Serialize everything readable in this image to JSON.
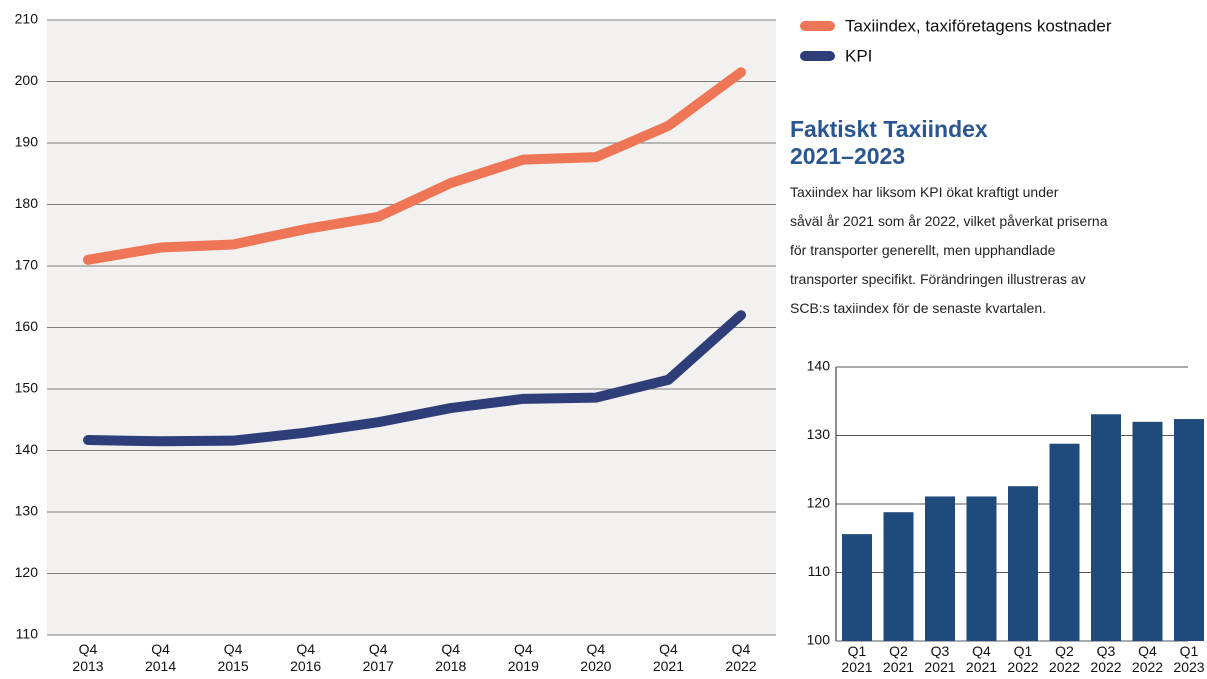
{
  "chart_data": [
    {
      "type": "line",
      "categories": [
        "Q4 2013",
        "Q4 2014",
        "Q4 2015",
        "Q4 2016",
        "Q4 2017",
        "Q4 2018",
        "Q4 2019",
        "Q4 2020",
        "Q4 2021",
        "Q4 2022"
      ],
      "series": [
        {
          "name": "Taxiindex, taxiföretagens kostnader",
          "color": "#ee7555",
          "values": [
            171,
            173,
            173.5,
            176,
            178,
            183.5,
            187.3,
            187.7,
            192.8,
            201.5
          ]
        },
        {
          "name": "KPI",
          "color": "#2e3e78",
          "values": [
            141.7,
            141.5,
            141.6,
            142.9,
            144.6,
            146.9,
            148.4,
            148.6,
            151.5,
            162
          ]
        }
      ],
      "ylim": [
        110,
        210
      ],
      "yticks": [
        110,
        120,
        130,
        140,
        150,
        160,
        170,
        180,
        190,
        200,
        210
      ],
      "grid": true
    },
    {
      "type": "bar",
      "categories": [
        "Q1 2021",
        "Q2 2021",
        "Q3 2021",
        "Q4 2021",
        "Q1 2022",
        "Q2 2022",
        "Q3 2022",
        "Q4 2022",
        "Q1 2023"
      ],
      "values": [
        115.6,
        118.8,
        121.1,
        121.1,
        122.6,
        128.8,
        133.1,
        132,
        132.4
      ],
      "color": "#1f4a7c",
      "ylim": [
        100,
        140
      ],
      "yticks": [
        100,
        110,
        120,
        130,
        140
      ],
      "grid": true
    }
  ],
  "text": {
    "heading": "Faktiskt Taxiindex 2021–2023",
    "paragraph_lines": [
      "Taxiindex har liksom KPI ökat kraftigt under",
      "såväl år 2021 som år 2022, vilket påverkat priserna",
      "för transporter generellt, men upphandlade",
      "transporter specifikt. Förändringen illustreras av",
      "SCB:s taxiindex för de senaste kvartalen."
    ]
  }
}
